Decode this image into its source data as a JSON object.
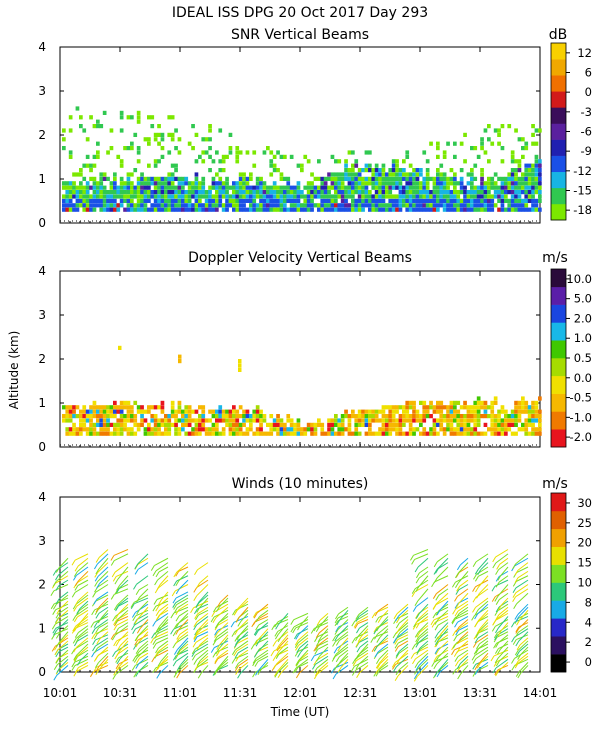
{
  "header": {
    "line1": "IDEAL ISS DPG  20 Oct 2017 Day 293"
  },
  "colors": {
    "snr": [
      "#7CE800",
      "#30C850",
      "#18B4E4",
      "#1A50E6",
      "#2020B0",
      "#5A209E",
      "#3A0E5A",
      "#D21A1A",
      "#F07000",
      "#F0A800",
      "#F8D000"
    ],
    "doppler": [
      "#E8141E",
      "#F07A00",
      "#F6B800",
      "#F0E000",
      "#A6DC00",
      "#40C800",
      "#18B8E8",
      "#1A46E0",
      "#5A1EA8",
      "#2A0A3A"
    ],
    "winds": [
      "#000000",
      "#2B1060",
      "#2828C8",
      "#18AAE6",
      "#2CC87A",
      "#7CE024",
      "#E8E000",
      "#F0A000",
      "#E06000",
      "#E01818"
    ]
  },
  "chart_data": [
    {
      "type": "heatmap",
      "title": "SNR Vertical Beams",
      "units": "dB",
      "y_ticks": [
        "0",
        "1",
        "2",
        "3",
        "4"
      ],
      "ylim": [
        0,
        4
      ],
      "x_ticks": [
        "10:01",
        "10:31",
        "11:01",
        "11:31",
        "12:01",
        "12:31",
        "13:01",
        "13:31",
        "14:01"
      ],
      "xlim": [
        "10:01",
        "14:01"
      ],
      "colorbar_labels": [
        "-18",
        "-15",
        "-12",
        "-9",
        "-6",
        "-3",
        "0",
        "6",
        "12"
      ],
      "colorbar_range": [
        -18,
        15
      ],
      "bottom_altitude_km": 0.25,
      "main_layer_top_km": [
        0.85,
        0.95,
        1.0,
        0.9,
        0.8,
        1.3,
        1.1,
        0.9,
        1.3
      ],
      "scattered_echo_top_km": [
        2.6,
        2.5,
        2.4,
        1.9,
        1.5,
        1.6,
        1.7,
        2.1,
        2.6
      ]
    },
    {
      "type": "heatmap",
      "title": "Doppler Velocity Vertical Beams",
      "units": "m/s",
      "y_ticks": [
        "0",
        "1",
        "2",
        "3",
        "4"
      ],
      "ylim": [
        0,
        4
      ],
      "x_ticks": [
        "10:01",
        "10:31",
        "11:01",
        "11:31",
        "12:01",
        "12:31",
        "13:01",
        "13:31",
        "14:01"
      ],
      "colorbar_labels": [
        "-2.0",
        "-1.0",
        "-0.5",
        "0.0",
        "0.5",
        "1.0",
        "2.0",
        "5.0",
        "10.0"
      ],
      "bottom_altitude_km": 0.25,
      "main_layer_top_km": [
        0.95,
        0.95,
        0.9,
        0.85,
        0.5,
        0.8,
        1.0,
        1.0,
        1.0
      ],
      "isolated_echoes": [
        {
          "time": "10:31",
          "alt_km": [
            2.2,
            2.6
          ]
        },
        {
          "time": "11:01",
          "alt_km": [
            1.8,
            2.2
          ]
        },
        {
          "time": "11:31",
          "alt_km": [
            1.7,
            2.0
          ]
        }
      ]
    },
    {
      "type": "scatter",
      "title": "Winds (10 minutes)",
      "units": "m/s",
      "y_ticks": [
        "0",
        "1",
        "2",
        "3",
        "4"
      ],
      "ylim": [
        0,
        4
      ],
      "x_ticks": [
        "10:01",
        "10:31",
        "11:01",
        "11:31",
        "12:01",
        "12:31",
        "13:01",
        "13:31",
        "14:01"
      ],
      "xlabel": "Time (UT)",
      "ylabel": "Altitude (km)",
      "colorbar_labels": [
        "0",
        "2",
        "4",
        "8",
        "10",
        "15",
        "20",
        "25",
        "30"
      ],
      "profile_interval_min": 10,
      "lower_mode_top_km": [
        1.9,
        1.9,
        1.9,
        1.8,
        1.8,
        1.9,
        1.9,
        1.9,
        1.8,
        1.7,
        1.6,
        1.4,
        1.4,
        1.4,
        1.5,
        1.5,
        1.6,
        1.6,
        1.6,
        1.7,
        1.7,
        1.7,
        1.7,
        1.6
      ],
      "upper_mode_top_km": [
        2.7,
        2.8,
        2.9,
        2.9,
        2.8,
        2.7,
        2.6,
        2.6,
        0,
        0,
        0,
        0,
        0,
        0,
        0,
        0,
        0,
        0,
        2.9,
        2.8,
        2.7,
        2.8,
        2.9,
        2.8
      ],
      "typical_speed_ms_low": 13,
      "typical_speed_ms_high": 18
    }
  ]
}
